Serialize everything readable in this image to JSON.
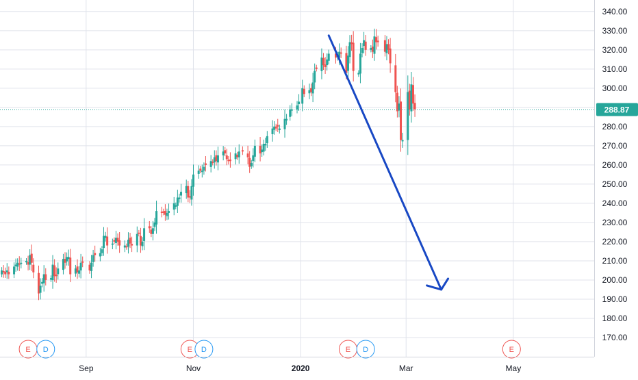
{
  "colors": {
    "up": "#26a69a",
    "down": "#ef5350",
    "grid": "#e0e3eb",
    "axis_text": "#131722",
    "price_line": "#26a69a",
    "arrow": "#1848c4",
    "earnings_marker": "#ef5350",
    "dividend_marker": "#2196f3",
    "background": "#ffffff"
  },
  "price_label": "288.87",
  "markers": [
    {
      "label": "E",
      "kind": "earnings",
      "date": "2019-07-30"
    },
    {
      "label": "D",
      "kind": "dividend",
      "date": "2019-08-09"
    },
    {
      "label": "E",
      "kind": "earnings",
      "date": "2019-10-30"
    },
    {
      "label": "D",
      "kind": "dividend",
      "date": "2019-11-07"
    },
    {
      "label": "E",
      "kind": "earnings",
      "date": "2020-01-28"
    },
    {
      "label": "D",
      "kind": "dividend",
      "date": "2020-02-07"
    },
    {
      "label": "E",
      "kind": "earnings",
      "date": "2020-04-30"
    }
  ],
  "chart_data": {
    "type": "candlestick",
    "y_range": [
      160,
      346
    ],
    "x_range": [
      "2019-07-14",
      "2020-06-16"
    ],
    "y_ticks": [
      "170.00",
      "180.00",
      "190.00",
      "200.00",
      "210.00",
      "220.00",
      "230.00",
      "240.00",
      "250.00",
      "260.00",
      "270.00",
      "280.00",
      "290.00",
      "300.00",
      "310.00",
      "320.00",
      "330.00",
      "340.00"
    ],
    "x_ticks": [
      {
        "label": "Sep",
        "date": "2019-09-01",
        "bold": false
      },
      {
        "label": "Nov",
        "date": "2019-11-01",
        "bold": false
      },
      {
        "label": "2020",
        "date": "2020-01-01",
        "bold": true
      },
      {
        "label": "Mar",
        "date": "2020-03-01",
        "bold": false
      },
      {
        "label": "May",
        "date": "2020-05-01",
        "bold": false
      }
    ],
    "current_price": 288.87,
    "trend_arrow": {
      "from": [
        "2020-01-17",
        327.5
      ],
      "to": [
        "2020-03-21",
        195
      ]
    },
    "closes": [
      [
        "2019-07-15",
        205
      ],
      [
        "2019-07-16",
        204
      ],
      [
        "2019-07-17",
        203
      ],
      [
        "2019-07-18",
        205
      ],
      [
        "2019-07-19",
        203
      ],
      [
        "2019-07-22",
        207
      ],
      [
        "2019-07-23",
        208
      ],
      [
        "2019-07-24",
        209
      ],
      [
        "2019-07-25",
        208
      ],
      [
        "2019-07-26",
        209
      ],
      [
        "2019-07-29",
        210
      ],
      [
        "2019-07-30",
        208
      ],
      [
        "2019-07-31",
        213
      ],
      [
        "2019-08-01",
        209
      ],
      [
        "2019-08-02",
        204
      ],
      [
        "2019-08-05",
        193
      ],
      [
        "2019-08-06",
        197
      ],
      [
        "2019-08-07",
        199
      ],
      [
        "2019-08-08",
        203
      ],
      [
        "2019-08-09",
        200
      ],
      [
        "2019-08-12",
        201
      ],
      [
        "2019-08-13",
        208
      ],
      [
        "2019-08-14",
        202
      ],
      [
        "2019-08-15",
        202
      ],
      [
        "2019-08-16",
        206
      ],
      [
        "2019-08-19",
        211
      ],
      [
        "2019-08-20",
        209
      ],
      [
        "2019-08-21",
        212
      ],
      [
        "2019-08-22",
        212
      ],
      [
        "2019-08-23",
        203
      ],
      [
        "2019-08-26",
        206
      ],
      [
        "2019-08-27",
        204
      ],
      [
        "2019-08-28",
        205
      ],
      [
        "2019-08-29",
        209
      ],
      [
        "2019-08-30",
        209
      ],
      [
        "2019-09-03",
        205
      ],
      [
        "2019-09-04",
        209
      ],
      [
        "2019-09-05",
        213
      ],
      [
        "2019-09-06",
        213
      ],
      [
        "2019-09-09",
        214
      ],
      [
        "2019-09-10",
        216
      ],
      [
        "2019-09-11",
        223
      ],
      [
        "2019-09-12",
        223
      ],
      [
        "2019-09-13",
        218
      ],
      [
        "2019-09-16",
        219
      ],
      [
        "2019-09-17",
        220
      ],
      [
        "2019-09-18",
        222
      ],
      [
        "2019-09-19",
        220
      ],
      [
        "2019-09-20",
        218
      ],
      [
        "2019-09-23",
        218
      ],
      [
        "2019-09-24",
        217
      ],
      [
        "2019-09-25",
        221
      ],
      [
        "2019-09-26",
        219
      ],
      [
        "2019-09-27",
        218
      ],
      [
        "2019-09-30",
        224
      ],
      [
        "2019-10-01",
        224
      ],
      [
        "2019-10-02",
        218
      ],
      [
        "2019-10-03",
        220
      ],
      [
        "2019-10-04",
        227
      ],
      [
        "2019-10-07",
        227
      ],
      [
        "2019-10-08",
        224
      ],
      [
        "2019-10-09",
        227
      ],
      [
        "2019-10-10",
        230
      ],
      [
        "2019-10-11",
        236
      ],
      [
        "2019-10-14",
        235
      ],
      [
        "2019-10-15",
        235
      ],
      [
        "2019-10-16",
        234
      ],
      [
        "2019-10-17",
        235
      ],
      [
        "2019-10-18",
        236
      ],
      [
        "2019-10-21",
        240
      ],
      [
        "2019-10-22",
        239
      ],
      [
        "2019-10-23",
        243
      ],
      [
        "2019-10-24",
        243
      ],
      [
        "2019-10-25",
        246
      ],
      [
        "2019-10-28",
        249
      ],
      [
        "2019-10-29",
        243
      ],
      [
        "2019-10-30",
        243
      ],
      [
        "2019-10-31",
        249
      ],
      [
        "2019-11-01",
        255
      ],
      [
        "2019-11-04",
        257
      ],
      [
        "2019-11-05",
        257
      ],
      [
        "2019-11-06",
        257
      ],
      [
        "2019-11-07",
        259
      ],
      [
        "2019-11-08",
        260
      ],
      [
        "2019-11-11",
        262
      ],
      [
        "2019-11-12",
        261
      ],
      [
        "2019-11-13",
        264
      ],
      [
        "2019-11-14",
        262
      ],
      [
        "2019-11-15",
        265
      ],
      [
        "2019-11-18",
        267
      ],
      [
        "2019-11-19",
        266
      ],
      [
        "2019-11-20",
        263
      ],
      [
        "2019-11-21",
        262
      ],
      [
        "2019-11-22",
        262
      ],
      [
        "2019-11-25",
        266
      ],
      [
        "2019-11-26",
        264
      ],
      [
        "2019-11-27",
        267
      ],
      [
        "2019-11-29",
        267
      ],
      [
        "2019-12-02",
        264
      ],
      [
        "2019-12-03",
        259
      ],
      [
        "2019-12-04",
        261
      ],
      [
        "2019-12-05",
        265
      ],
      [
        "2019-12-06",
        270
      ],
      [
        "2019-12-09",
        266
      ],
      [
        "2019-12-10",
        268
      ],
      [
        "2019-12-11",
        271
      ],
      [
        "2019-12-12",
        271
      ],
      [
        "2019-12-13",
        275
      ],
      [
        "2019-12-16",
        279
      ],
      [
        "2019-12-17",
        280
      ],
      [
        "2019-12-18",
        279
      ],
      [
        "2019-12-19",
        280
      ],
      [
        "2019-12-20",
        279
      ],
      [
        "2019-12-23",
        284
      ],
      [
        "2019-12-24",
        284
      ],
      [
        "2019-12-26",
        289
      ],
      [
        "2019-12-27",
        289
      ],
      [
        "2019-12-30",
        291
      ],
      [
        "2019-12-31",
        293
      ],
      [
        "2020-01-02",
        300
      ],
      [
        "2020-01-03",
        297
      ],
      [
        "2020-01-06",
        299
      ],
      [
        "2020-01-07",
        298
      ],
      [
        "2020-01-08",
        303
      ],
      [
        "2020-01-09",
        309
      ],
      [
        "2020-01-10",
        310
      ],
      [
        "2020-01-13",
        316
      ],
      [
        "2020-01-14",
        312
      ],
      [
        "2020-01-15",
        311
      ],
      [
        "2020-01-16",
        315
      ],
      [
        "2020-01-17",
        318
      ],
      [
        "2020-01-21",
        316
      ],
      [
        "2020-01-22",
        317
      ],
      [
        "2020-01-23",
        319
      ],
      [
        "2020-01-24",
        318
      ],
      [
        "2020-01-27",
        308
      ],
      [
        "2020-01-28",
        317
      ],
      [
        "2020-01-29",
        324
      ],
      [
        "2020-01-30",
        323
      ],
      [
        "2020-01-31",
        309
      ],
      [
        "2020-02-03",
        308
      ],
      [
        "2020-02-04",
        318
      ],
      [
        "2020-02-05",
        321
      ],
      [
        "2020-02-06",
        325
      ],
      [
        "2020-02-07",
        320
      ],
      [
        "2020-02-10",
        321
      ],
      [
        "2020-02-11",
        319
      ],
      [
        "2020-02-12",
        327
      ],
      [
        "2020-02-13",
        324
      ],
      [
        "2020-02-14",
        324
      ],
      [
        "2020-02-18",
        319
      ],
      [
        "2020-02-19",
        323
      ],
      [
        "2020-02-20",
        320
      ],
      [
        "2020-02-21",
        313
      ],
      [
        "2020-02-24",
        298
      ],
      [
        "2020-02-25",
        288
      ],
      [
        "2020-02-26",
        292
      ],
      [
        "2020-02-27",
        273
      ],
      [
        "2020-02-28",
        273
      ],
      [
        "2020-03-02",
        298
      ],
      [
        "2020-03-03",
        289
      ],
      [
        "2020-03-04",
        302
      ],
      [
        "2020-03-05",
        292
      ],
      [
        "2020-03-06",
        289
      ]
    ]
  }
}
